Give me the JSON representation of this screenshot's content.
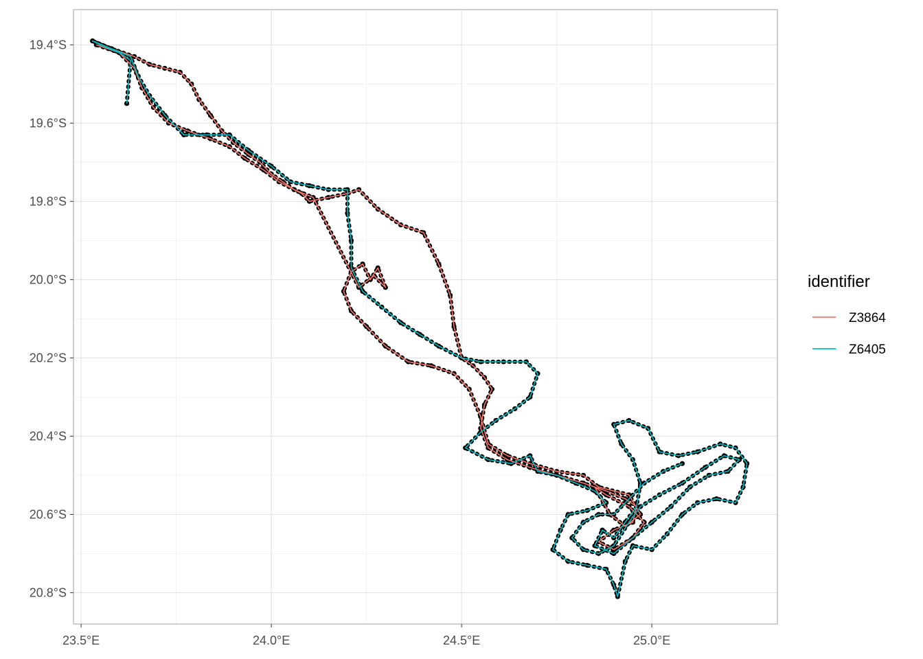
{
  "chart_data": {
    "type": "line",
    "title": "",
    "xlabel": "",
    "ylabel": "",
    "xlim": [
      23.48,
      25.33
    ],
    "ylim": [
      -20.88,
      -19.31
    ],
    "x_ticks": [
      {
        "value": 23.5,
        "label": "23.5°E"
      },
      {
        "value": 24.0,
        "label": "24.0°E"
      },
      {
        "value": 24.5,
        "label": "24.5°E"
      },
      {
        "value": 25.0,
        "label": "25.0°E"
      }
    ],
    "y_ticks": [
      {
        "value": -19.4,
        "label": "19.4°S"
      },
      {
        "value": -19.6,
        "label": "19.6°S"
      },
      {
        "value": -19.8,
        "label": "19.8°S"
      },
      {
        "value": -20.0,
        "label": "20.0°S"
      },
      {
        "value": -20.2,
        "label": "20.2°S"
      },
      {
        "value": -20.4,
        "label": "20.4°S"
      },
      {
        "value": -20.6,
        "label": "20.6°S"
      },
      {
        "value": -20.8,
        "label": "20.8°S"
      }
    ],
    "grid": true,
    "legend": {
      "title": "identifier",
      "position": "right"
    },
    "point_color": "#000000",
    "series": [
      {
        "name": "Z3864",
        "color": "#F8766D",
        "points": [
          [
            23.53,
            -19.39
          ],
          [
            23.58,
            -19.41
          ],
          [
            23.64,
            -19.43
          ],
          [
            23.68,
            -19.45
          ],
          [
            23.72,
            -19.46
          ],
          [
            23.76,
            -19.47
          ],
          [
            23.79,
            -19.5
          ],
          [
            23.81,
            -19.54
          ],
          [
            23.84,
            -19.58
          ],
          [
            23.87,
            -19.62
          ],
          [
            23.9,
            -19.65
          ],
          [
            23.94,
            -19.68
          ],
          [
            23.97,
            -19.7
          ],
          [
            24.0,
            -19.73
          ],
          [
            24.03,
            -19.75
          ],
          [
            24.06,
            -19.77
          ],
          [
            24.08,
            -19.78
          ],
          [
            24.1,
            -19.8
          ],
          [
            24.15,
            -19.79
          ],
          [
            24.2,
            -19.78
          ],
          [
            24.23,
            -19.77
          ],
          [
            24.28,
            -19.82
          ],
          [
            24.34,
            -19.86
          ],
          [
            24.4,
            -19.88
          ],
          [
            24.44,
            -19.96
          ],
          [
            24.47,
            -20.04
          ],
          [
            24.48,
            -20.12
          ],
          [
            24.5,
            -20.2
          ],
          [
            24.53,
            -20.22
          ],
          [
            24.56,
            -20.25
          ],
          [
            24.58,
            -20.28
          ],
          [
            24.56,
            -20.32
          ],
          [
            24.55,
            -20.38
          ],
          [
            24.57,
            -20.43
          ],
          [
            24.62,
            -20.46
          ],
          [
            24.68,
            -20.48
          ],
          [
            24.75,
            -20.5
          ],
          [
            24.82,
            -20.52
          ],
          [
            24.88,
            -20.54
          ],
          [
            24.93,
            -20.56
          ],
          [
            24.96,
            -20.58
          ],
          [
            24.95,
            -20.62
          ],
          [
            24.9,
            -20.64
          ],
          [
            24.86,
            -20.67
          ],
          [
            24.9,
            -20.69
          ],
          [
            24.95,
            -20.66
          ],
          [
            24.98,
            -20.62
          ],
          [
            24.94,
            -20.58
          ],
          [
            24.88,
            -20.55
          ],
          [
            24.85,
            -20.53
          ],
          [
            24.89,
            -20.6
          ],
          [
            24.93,
            -20.63
          ],
          [
            24.97,
            -20.6
          ],
          [
            24.94,
            -20.55
          ],
          [
            24.86,
            -20.53
          ],
          [
            24.82,
            -20.5
          ],
          [
            24.75,
            -20.49
          ],
          [
            24.68,
            -20.47
          ],
          [
            24.62,
            -20.45
          ],
          [
            24.57,
            -20.42
          ],
          [
            24.55,
            -20.35
          ],
          [
            24.52,
            -20.28
          ],
          [
            24.48,
            -20.24
          ],
          [
            24.42,
            -20.22
          ],
          [
            24.36,
            -20.21
          ],
          [
            24.3,
            -20.17
          ],
          [
            24.25,
            -20.12
          ],
          [
            24.21,
            -20.08
          ],
          [
            24.19,
            -20.03
          ],
          [
            24.21,
            -19.98
          ],
          [
            24.24,
            -19.96
          ],
          [
            24.26,
            -20.0
          ],
          [
            24.28,
            -19.97
          ],
          [
            24.3,
            -20.02
          ],
          [
            24.27,
            -19.99
          ],
          [
            24.23,
            -20.02
          ],
          [
            24.11,
            -19.79
          ],
          [
            24.06,
            -19.77
          ],
          [
            24.02,
            -19.75
          ],
          [
            23.98,
            -19.72
          ],
          [
            23.93,
            -19.69
          ],
          [
            23.89,
            -19.66
          ],
          [
            23.84,
            -19.64
          ],
          [
            23.78,
            -19.62
          ],
          [
            23.73,
            -19.6
          ],
          [
            23.69,
            -19.56
          ],
          [
            23.66,
            -19.51
          ],
          [
            23.64,
            -19.46
          ],
          [
            23.6,
            -19.42
          ],
          [
            23.54,
            -19.4
          ]
        ]
      },
      {
        "name": "Z6405",
        "color": "#00BFC4",
        "points": [
          [
            23.62,
            -19.55
          ],
          [
            23.63,
            -19.44
          ],
          [
            23.6,
            -19.42
          ],
          [
            23.55,
            -19.4
          ],
          [
            23.53,
            -19.39
          ],
          [
            23.58,
            -19.41
          ],
          [
            23.63,
            -19.43
          ],
          [
            23.65,
            -19.48
          ],
          [
            23.68,
            -19.53
          ],
          [
            23.72,
            -19.58
          ],
          [
            23.77,
            -19.63
          ],
          [
            23.83,
            -19.63
          ],
          [
            23.89,
            -19.63
          ],
          [
            23.94,
            -19.67
          ],
          [
            24.0,
            -19.71
          ],
          [
            24.05,
            -19.75
          ],
          [
            24.1,
            -19.76
          ],
          [
            24.15,
            -19.77
          ],
          [
            24.2,
            -19.77
          ],
          [
            24.2,
            -19.83
          ],
          [
            24.21,
            -19.9
          ],
          [
            24.21,
            -19.97
          ],
          [
            24.24,
            -20.03
          ],
          [
            24.29,
            -20.07
          ],
          [
            24.34,
            -20.11
          ],
          [
            24.39,
            -20.14
          ],
          [
            24.44,
            -20.17
          ],
          [
            24.5,
            -20.2
          ],
          [
            24.55,
            -20.21
          ],
          [
            24.61,
            -20.21
          ],
          [
            24.67,
            -20.21
          ],
          [
            24.7,
            -20.24
          ],
          [
            24.68,
            -20.3
          ],
          [
            24.64,
            -20.33
          ],
          [
            24.59,
            -20.36
          ],
          [
            24.55,
            -20.39
          ],
          [
            24.51,
            -20.43
          ],
          [
            24.57,
            -20.46
          ],
          [
            24.63,
            -20.47
          ],
          [
            24.68,
            -20.45
          ],
          [
            24.7,
            -20.49
          ],
          [
            24.75,
            -20.5
          ],
          [
            24.8,
            -20.52
          ],
          [
            24.85,
            -20.54
          ],
          [
            24.88,
            -20.57
          ],
          [
            24.83,
            -20.59
          ],
          [
            24.78,
            -20.6
          ],
          [
            24.76,
            -20.64
          ],
          [
            24.74,
            -20.69
          ],
          [
            24.78,
            -20.72
          ],
          [
            24.83,
            -20.73
          ],
          [
            24.88,
            -20.74
          ],
          [
            24.9,
            -20.78
          ],
          [
            24.91,
            -20.81
          ],
          [
            24.93,
            -20.72
          ],
          [
            24.95,
            -20.68
          ],
          [
            25.0,
            -20.69
          ],
          [
            25.04,
            -20.65
          ],
          [
            25.08,
            -20.6
          ],
          [
            25.12,
            -20.57
          ],
          [
            25.17,
            -20.56
          ],
          [
            25.22,
            -20.57
          ],
          [
            25.24,
            -20.53
          ],
          [
            25.25,
            -20.47
          ],
          [
            25.22,
            -20.43
          ],
          [
            25.18,
            -20.42
          ],
          [
            25.12,
            -20.44
          ],
          [
            25.07,
            -20.45
          ],
          [
            25.02,
            -20.44
          ],
          [
            24.99,
            -20.38
          ],
          [
            24.94,
            -20.36
          ],
          [
            24.9,
            -20.37
          ],
          [
            24.92,
            -20.42
          ],
          [
            24.95,
            -20.46
          ],
          [
            24.97,
            -20.52
          ],
          [
            24.96,
            -20.58
          ],
          [
            24.93,
            -20.62
          ],
          [
            24.9,
            -20.66
          ],
          [
            24.87,
            -20.64
          ],
          [
            24.85,
            -20.68
          ],
          [
            24.9,
            -20.7
          ],
          [
            24.95,
            -20.66
          ],
          [
            25.0,
            -20.62
          ],
          [
            25.05,
            -20.58
          ],
          [
            25.1,
            -20.53
          ],
          [
            25.15,
            -20.5
          ],
          [
            25.2,
            -20.49
          ],
          [
            25.23,
            -20.46
          ],
          [
            25.19,
            -20.45
          ],
          [
            25.14,
            -20.48
          ],
          [
            25.08,
            -20.52
          ],
          [
            25.02,
            -20.55
          ],
          [
            24.97,
            -20.58
          ],
          [
            24.94,
            -20.62
          ],
          [
            24.9,
            -20.68
          ],
          [
            24.86,
            -20.7
          ],
          [
            24.82,
            -20.69
          ],
          [
            24.79,
            -20.66
          ],
          [
            24.82,
            -20.62
          ],
          [
            24.86,
            -20.6
          ],
          [
            24.9,
            -20.6
          ],
          [
            24.93,
            -20.57
          ],
          [
            24.98,
            -20.52
          ],
          [
            25.03,
            -20.49
          ],
          [
            25.08,
            -20.47
          ]
        ]
      }
    ]
  }
}
